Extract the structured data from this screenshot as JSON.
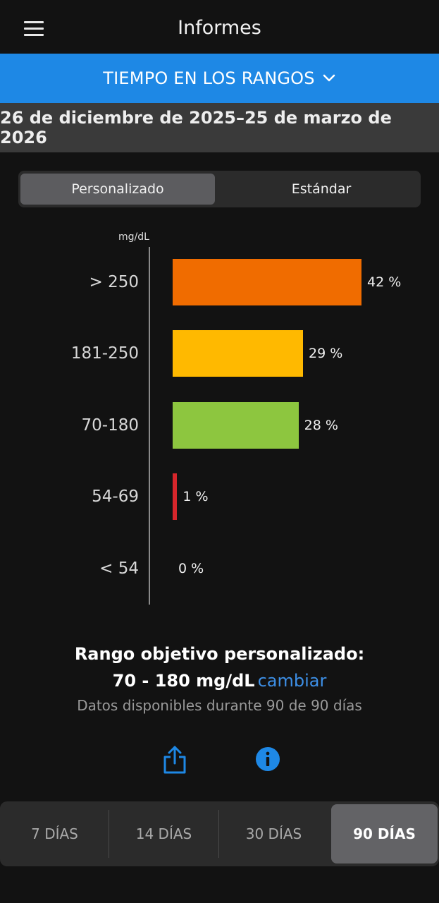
{
  "header": {
    "title": "Informes",
    "menu_icon": "hamburger-menu-icon"
  },
  "report_selector": {
    "label": "TIEMPO EN LOS RANGOS",
    "icon": "chevron-down-icon"
  },
  "date_range": "26 de diciembre de 2025–25 de marzo de 2026",
  "segmented": {
    "options": [
      "Personalizado",
      "Estándar"
    ],
    "selected": "Personalizado"
  },
  "chart_data": {
    "type": "bar",
    "orientation": "horizontal",
    "unit_label": "mg/dL",
    "categories": [
      "> 250",
      "181-250",
      "70-180",
      "54-69",
      "< 54"
    ],
    "values": [
      42,
      29,
      28,
      1,
      0
    ],
    "value_labels": [
      "42 %",
      "29 %",
      "28 %",
      "1 %",
      "0 %"
    ],
    "colors": [
      "#f06c00",
      "#ffb900",
      "#8dc63f",
      "#d7262b",
      "#d7262b"
    ],
    "xlim": [
      0,
      100
    ]
  },
  "target": {
    "title": "Rango objetivo personalizado:",
    "range": "70 - 180 mg/dL",
    "change_link": "cambiar",
    "availability": "Datos disponibles durante 90 de 90 días"
  },
  "actions": {
    "share_icon": "share-icon",
    "info_icon": "info-icon",
    "accent": "#1e88e5"
  },
  "periods": {
    "options": [
      "7 DÍAS",
      "14 DÍAS",
      "30 DÍAS",
      "90 DÍAS"
    ],
    "selected": "90 DÍAS"
  }
}
